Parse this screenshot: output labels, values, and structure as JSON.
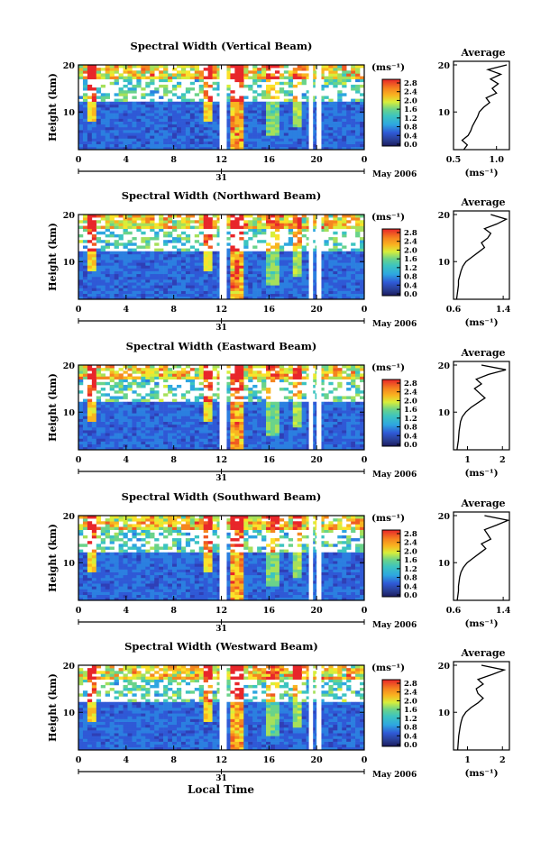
{
  "figure": {
    "date_label": "May 2006",
    "xlabel": "Local Time",
    "day_label": "31",
    "colorbar_unit": "(ms⁻¹)",
    "average_title": "Average",
    "average_xlabel": "(ms⁻¹)",
    "colorbar_ticks": [
      "2.8",
      "2.4",
      "2.0",
      "1.6",
      "1.2",
      "0.8",
      "0.4",
      "0.0"
    ],
    "colorbar_colors": [
      "#e8262a",
      "#f05a22",
      "#f5861f",
      "#f9b520",
      "#fbe22a",
      "#d8ee3a",
      "#a6e05a",
      "#6ad38a",
      "#3cc4c0",
      "#2ea6e0",
      "#2b7fe0",
      "#2f59d6",
      "#2f3fb6",
      "#283b8e",
      "#1a1a60"
    ]
  },
  "chart_data": [
    {
      "type": "heatmap",
      "title": "Spectral Width (Vertical Beam)",
      "ylabel": "Height (km)",
      "x_ticks": [
        "0",
        "4",
        "8",
        "12",
        "16",
        "20",
        "0"
      ],
      "xlim": [
        0,
        24
      ],
      "y_ticks": [
        "10",
        "20"
      ],
      "ylim": [
        2,
        20
      ],
      "zlim": [
        0,
        2.8
      ],
      "average": {
        "title": "Average",
        "x_ticks": [
          "0.5",
          "1.0"
        ],
        "xlim": [
          0.5,
          1.15
        ],
        "y_ticks": [
          "10",
          "20"
        ],
        "height_km": [
          2,
          3,
          4,
          5,
          6,
          7,
          8,
          9,
          10,
          11,
          12,
          13,
          14,
          15,
          16,
          17,
          18,
          19,
          20
        ],
        "value": [
          0.62,
          0.66,
          0.6,
          0.67,
          0.7,
          0.72,
          0.75,
          0.78,
          0.8,
          0.85,
          0.92,
          0.88,
          1.0,
          0.95,
          1.02,
          0.93,
          1.05,
          0.9,
          1.12
        ]
      }
    },
    {
      "type": "heatmap",
      "title": "Spectral Width (Northward Beam)",
      "ylabel": "Height (km)",
      "x_ticks": [
        "0",
        "4",
        "8",
        "12",
        "16",
        "20",
        "0"
      ],
      "xlim": [
        0,
        24
      ],
      "y_ticks": [
        "10",
        "20"
      ],
      "ylim": [
        2,
        20
      ],
      "zlim": [
        0,
        2.8
      ],
      "average": {
        "title": "Average",
        "x_ticks": [
          "0.6",
          "1.4"
        ],
        "xlim": [
          0.6,
          1.5
        ],
        "y_ticks": [
          "10",
          "20"
        ],
        "height_km": [
          2,
          3,
          4,
          5,
          6,
          7,
          8,
          9,
          10,
          11,
          12,
          13,
          14,
          15,
          16,
          17,
          18,
          19,
          20
        ],
        "value": [
          0.65,
          0.66,
          0.67,
          0.68,
          0.68,
          0.7,
          0.72,
          0.75,
          0.8,
          0.9,
          1.0,
          1.1,
          1.05,
          1.15,
          1.2,
          1.1,
          1.3,
          1.45,
          1.2
        ]
      }
    },
    {
      "type": "heatmap",
      "title": "Spectral Width (Eastward Beam)",
      "ylabel": "Height (km)",
      "x_ticks": [
        "0",
        "4",
        "8",
        "12",
        "16",
        "20",
        "0"
      ],
      "xlim": [
        0,
        24
      ],
      "y_ticks": [
        "10",
        "20"
      ],
      "ylim": [
        2,
        20
      ],
      "zlim": [
        0,
        2.8
      ],
      "average": {
        "title": "Average",
        "x_ticks": [
          "1",
          "2"
        ],
        "xlim": [
          0.6,
          2.2
        ],
        "y_ticks": [
          "10",
          "20"
        ],
        "height_km": [
          2,
          3,
          4,
          5,
          6,
          7,
          8,
          9,
          10,
          11,
          12,
          13,
          14,
          15,
          16,
          17,
          18,
          19,
          20
        ],
        "value": [
          0.7,
          0.72,
          0.74,
          0.75,
          0.76,
          0.78,
          0.8,
          0.85,
          0.95,
          1.1,
          1.3,
          1.5,
          1.35,
          1.2,
          1.4,
          1.25,
          1.6,
          2.1,
          1.4
        ]
      }
    },
    {
      "type": "heatmap",
      "title": "Spectral Width (Southward Beam)",
      "ylabel": "Height (km)",
      "x_ticks": [
        "0",
        "4",
        "8",
        "12",
        "16",
        "20",
        "0"
      ],
      "xlim": [
        0,
        24
      ],
      "y_ticks": [
        "10",
        "20"
      ],
      "ylim": [
        2,
        20
      ],
      "zlim": [
        0,
        2.8
      ],
      "average": {
        "title": "Average",
        "x_ticks": [
          "0.6",
          "1.4"
        ],
        "xlim": [
          0.6,
          1.5
        ],
        "y_ticks": [
          "10",
          "20"
        ],
        "height_km": [
          2,
          3,
          4,
          5,
          6,
          7,
          8,
          9,
          10,
          11,
          12,
          13,
          14,
          15,
          16,
          17,
          18,
          19,
          20
        ],
        "value": [
          0.66,
          0.67,
          0.68,
          0.68,
          0.69,
          0.7,
          0.72,
          0.76,
          0.82,
          0.92,
          1.02,
          1.12,
          1.05,
          1.2,
          1.15,
          1.1,
          1.3,
          1.48,
          1.1
        ]
      }
    },
    {
      "type": "heatmap",
      "title": "Spectral Width (Westward Beam)",
      "ylabel": "Height (km)",
      "x_ticks": [
        "0",
        "4",
        "8",
        "12",
        "16",
        "20",
        "0"
      ],
      "xlim": [
        0,
        24
      ],
      "y_ticks": [
        "10",
        "20"
      ],
      "ylim": [
        2,
        20
      ],
      "zlim": [
        0,
        2.8
      ],
      "average": {
        "title": "Average",
        "x_ticks": [
          "1",
          "2"
        ],
        "xlim": [
          0.6,
          2.2
        ],
        "y_ticks": [
          "10",
          "20"
        ],
        "height_km": [
          2,
          3,
          4,
          5,
          6,
          7,
          8,
          9,
          10,
          11,
          12,
          13,
          14,
          15,
          16,
          17,
          18,
          19,
          20
        ],
        "value": [
          0.72,
          0.73,
          0.74,
          0.75,
          0.77,
          0.79,
          0.82,
          0.86,
          0.95,
          1.1,
          1.3,
          1.45,
          1.3,
          1.25,
          1.45,
          1.3,
          1.7,
          2.05,
          1.4
        ]
      }
    }
  ]
}
